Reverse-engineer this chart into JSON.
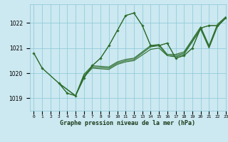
{
  "title": "Graphe pression niveau de la mer (hPa)",
  "bg_color": "#cce8f0",
  "grid_color": "#88c8d8",
  "line_color": "#2d6e2d",
  "xlim": [
    -0.5,
    23
  ],
  "ylim": [
    1018.5,
    1022.75
  ],
  "yticks": [
    1019,
    1020,
    1021,
    1022
  ],
  "xtick_labels": [
    "0",
    "1",
    "2",
    "3",
    "4",
    "5",
    "6",
    "7",
    "8",
    "9",
    "10",
    "11",
    "12",
    "13",
    "14",
    "15",
    "16",
    "17",
    "18",
    "19",
    "20",
    "21",
    "22",
    "23"
  ],
  "series": [
    {
      "x": [
        0,
        1,
        3,
        4,
        5,
        6,
        7,
        8,
        9,
        10,
        11,
        12,
        13,
        14,
        15,
        16,
        17,
        18,
        19,
        20,
        21,
        22,
        23
      ],
      "y": [
        1020.8,
        1020.2,
        1019.6,
        1019.2,
        1019.1,
        1019.8,
        1020.3,
        1020.6,
        1021.1,
        1021.7,
        1022.3,
        1022.4,
        1021.9,
        1021.1,
        1021.1,
        1021.2,
        1020.6,
        1020.7,
        1021.0,
        1021.8,
        1021.9,
        1021.9,
        1022.2
      ]
    },
    {
      "x": [
        3,
        5,
        6,
        7,
        9,
        10,
        11,
        12,
        14,
        15,
        16,
        17,
        18,
        20,
        21,
        22,
        23
      ],
      "y": [
        1019.6,
        1019.1,
        1019.85,
        1020.2,
        1020.15,
        1020.35,
        1020.45,
        1020.5,
        1020.95,
        1021.0,
        1020.7,
        1020.65,
        1020.75,
        1021.75,
        1021.0,
        1021.85,
        1022.2
      ]
    },
    {
      "x": [
        3,
        5,
        6,
        7,
        9,
        10,
        11,
        12,
        14,
        15,
        16,
        17,
        18,
        20,
        21,
        22,
        23
      ],
      "y": [
        1019.6,
        1019.1,
        1019.9,
        1020.25,
        1020.2,
        1020.4,
        1020.5,
        1020.55,
        1021.05,
        1021.1,
        1020.7,
        1020.7,
        1020.8,
        1021.8,
        1021.05,
        1021.9,
        1022.2
      ]
    },
    {
      "x": [
        3,
        5,
        6,
        7,
        9,
        10,
        11,
        12,
        14,
        15,
        16,
        17,
        18,
        20,
        21,
        22,
        23
      ],
      "y": [
        1019.6,
        1019.1,
        1019.95,
        1020.3,
        1020.25,
        1020.45,
        1020.55,
        1020.6,
        1021.1,
        1021.15,
        1020.75,
        1020.75,
        1020.85,
        1021.85,
        1021.1,
        1021.95,
        1022.25
      ]
    }
  ],
  "marker_x": [
    0,
    1,
    3,
    4,
    5,
    6,
    7,
    8,
    9,
    10,
    11,
    12,
    13,
    14,
    15,
    16,
    17,
    18,
    19,
    20,
    21,
    22,
    23
  ],
  "marker_y": [
    1020.8,
    1020.2,
    1019.6,
    1019.2,
    1019.1,
    1019.8,
    1020.3,
    1020.6,
    1021.1,
    1021.7,
    1022.3,
    1022.4,
    1021.9,
    1021.1,
    1021.1,
    1021.2,
    1020.6,
    1020.7,
    1021.0,
    1021.8,
    1021.9,
    1021.9,
    1022.2
  ]
}
